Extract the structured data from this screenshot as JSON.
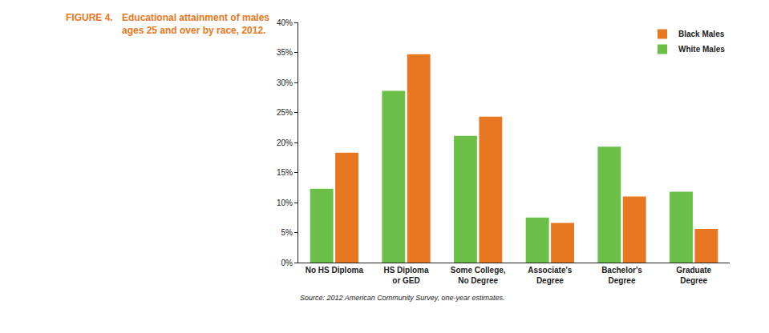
{
  "chart_data": {
    "type": "bar",
    "figure_number": "FIGURE 4.",
    "title": "Educational attainment of males ages 25 and over by race, 2012.",
    "source": "Source: 2012 American Community Survey, one-year estimates.",
    "categories": [
      "No HS Diploma",
      "HS Diploma\nor GED",
      "Some College,\nNo Degree",
      "Associate's\nDegree",
      "Bachelor's\nDegree",
      "Graduate\nDegree"
    ],
    "series": [
      {
        "name": "White Males",
        "color": "#6cc04a",
        "values": [
          12.3,
          28.6,
          21.1,
          7.5,
          19.3,
          11.8
        ]
      },
      {
        "name": "Black Males",
        "color": "#e87722",
        "values": [
          18.3,
          34.7,
          24.3,
          6.6,
          11.0,
          5.6
        ]
      }
    ],
    "ylim": [
      0,
      40
    ],
    "yticks": [
      {
        "value": 0,
        "label": "0%"
      },
      {
        "value": 5,
        "label": "5%"
      },
      {
        "value": 10,
        "label": "10%"
      },
      {
        "value": 15,
        "label": "15%"
      },
      {
        "value": 20,
        "label": "20%"
      },
      {
        "value": 25,
        "label": "25%"
      },
      {
        "value": 30,
        "label": "30%"
      },
      {
        "value": 35,
        "label": "35%"
      },
      {
        "value": 40,
        "label": "40%"
      }
    ],
    "grid": false,
    "legend": "top right"
  }
}
